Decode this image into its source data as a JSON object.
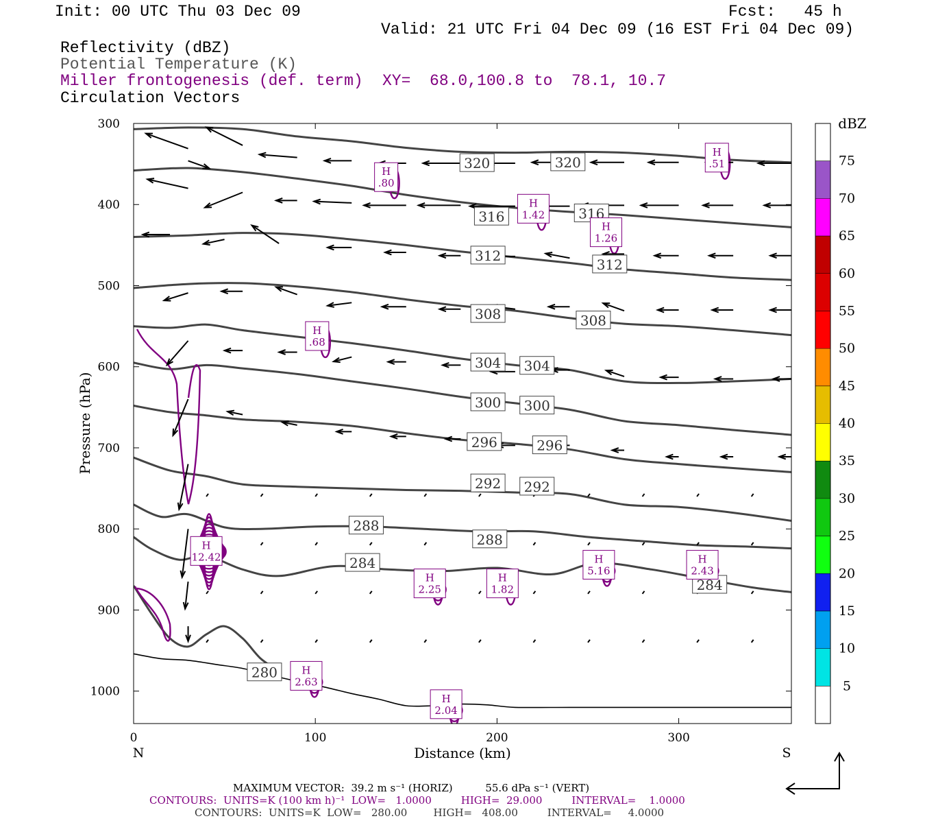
{
  "header": {
    "init": "Init: 00 UTC Thu 03 Dec 09",
    "fcst": "Fcst:   45 h",
    "valid": "Valid: 21 UTC Fri 04 Dec 09 (16 EST Fri 04 Dec 09)",
    "fields": [
      "Reflectivity (dBZ)",
      "Potential Temperature (K)",
      "Miller frontogenesis (def. term)",
      "Circulation Vectors"
    ],
    "xy": "XY=  68.0,100.8 to  78.1, 10.7"
  },
  "colors": {
    "theta": "#444444",
    "frontogenesis": "#800080",
    "terrain": "#000000",
    "vectors": "#000000"
  },
  "chart_data": {
    "type": "line",
    "xlabel": "Distance (km)",
    "ylabel": "Pressure (hPa)",
    "xlim": [
      0,
      362
    ],
    "ylim": [
      1040,
      300
    ],
    "xticks": [
      0,
      100,
      200,
      300
    ],
    "yticks": [
      300,
      400,
      500,
      600,
      700,
      800,
      900,
      1000
    ],
    "end_labels": {
      "left": "N",
      "right": "S"
    },
    "theta_contours": [
      {
        "value": "320",
        "x": [
          0,
          30,
          60,
          90,
          120,
          150,
          180,
          210,
          240,
          270,
          300,
          330,
          362
        ],
        "y": [
          307,
          305,
          307,
          316,
          322,
          330,
          335,
          336,
          335,
          336,
          340,
          345,
          348
        ]
      },
      {
        "value": "316",
        "x": [
          0,
          30,
          60,
          90,
          120,
          150,
          180,
          210,
          240,
          270,
          300,
          330,
          362
        ],
        "y": [
          358,
          355,
          360,
          368,
          377,
          388,
          397,
          404,
          409,
          413,
          418,
          423,
          428
        ]
      },
      {
        "value": "312",
        "x": [
          0,
          30,
          60,
          90,
          120,
          150,
          180,
          210,
          240,
          270,
          300,
          330,
          362
        ],
        "y": [
          440,
          438,
          435,
          437,
          443,
          450,
          458,
          465,
          472,
          480,
          485,
          490,
          493
        ]
      },
      {
        "value": "308",
        "x": [
          0,
          30,
          60,
          90,
          120,
          150,
          180,
          210,
          240,
          270,
          300,
          330,
          362
        ],
        "y": [
          503,
          498,
          497,
          501,
          508,
          517,
          525,
          531,
          540,
          547,
          550,
          555,
          561
        ]
      },
      {
        "value": "304",
        "x": [
          0,
          20,
          40,
          60,
          90,
          120,
          150,
          180,
          210,
          240,
          270,
          300,
          330,
          362
        ],
        "y": [
          550,
          552,
          548,
          555,
          563,
          571,
          580,
          590,
          598,
          604,
          618,
          620,
          618,
          615
        ]
      },
      {
        "value": "300",
        "x": [
          0,
          20,
          40,
          60,
          90,
          120,
          150,
          180,
          210,
          240,
          270,
          300,
          330,
          362
        ],
        "y": [
          595,
          603,
          598,
          602,
          609,
          618,
          627,
          637,
          645,
          653,
          667,
          672,
          678,
          684
        ]
      },
      {
        "value": "296",
        "x": [
          0,
          20,
          40,
          60,
          90,
          120,
          150,
          180,
          210,
          240,
          270,
          300,
          330,
          362
        ],
        "y": [
          648,
          656,
          660,
          665,
          668,
          673,
          682,
          690,
          695,
          702,
          714,
          720,
          725,
          730
        ]
      },
      {
        "value": "292",
        "x": [
          0,
          20,
          40,
          60,
          90,
          120,
          150,
          180,
          210,
          240,
          270,
          300,
          330,
          362
        ],
        "y": [
          712,
          728,
          735,
          745,
          748,
          750,
          752,
          753,
          755,
          757,
          770,
          773,
          780,
          790
        ]
      },
      {
        "value": "288",
        "x": [
          0,
          15,
          30,
          50,
          70,
          100,
          130,
          160,
          190,
          220,
          250,
          280,
          310,
          340,
          362
        ],
        "y": [
          770,
          785,
          782,
          798,
          800,
          797,
          797,
          800,
          803,
          803,
          810,
          815,
          820,
          822,
          824
        ]
      },
      {
        "value": "284",
        "x": [
          0,
          10,
          25,
          40,
          60,
          80,
          110,
          140,
          170,
          200,
          230,
          255,
          285,
          310,
          340,
          362
        ],
        "y": [
          810,
          825,
          838,
          833,
          850,
          858,
          846,
          850,
          852,
          848,
          856,
          842,
          850,
          860,
          872,
          878
        ]
      },
      {
        "value": "280",
        "x": [
          0,
          10,
          20,
          30,
          40,
          50,
          60,
          70,
          80
        ],
        "y": [
          870,
          905,
          935,
          945,
          930,
          920,
          935,
          960,
          975
        ]
      }
    ],
    "theta_labels": [
      {
        "text": "320",
        "x": 189,
        "y": 350
      },
      {
        "text": "320",
        "x": 239,
        "y": 349
      },
      {
        "text": "316",
        "x": 197,
        "y": 416
      },
      {
        "text": "316",
        "x": 252,
        "y": 412
      },
      {
        "text": "312",
        "x": 195,
        "y": 464
      },
      {
        "text": "312",
        "x": 262,
        "y": 475
      },
      {
        "text": "308",
        "x": 195,
        "y": 536
      },
      {
        "text": "308",
        "x": 253,
        "y": 544
      },
      {
        "text": "304",
        "x": 195,
        "y": 596
      },
      {
        "text": "304",
        "x": 222,
        "y": 600
      },
      {
        "text": "300",
        "x": 195,
        "y": 645
      },
      {
        "text": "300",
        "x": 222,
        "y": 649
      },
      {
        "text": "296",
        "x": 193,
        "y": 694
      },
      {
        "text": "296",
        "x": 229,
        "y": 698
      },
      {
        "text": "292",
        "x": 195,
        "y": 745
      },
      {
        "text": "292",
        "x": 222,
        "y": 749
      },
      {
        "text": "288",
        "x": 128,
        "y": 797
      },
      {
        "text": "288",
        "x": 196,
        "y": 814
      },
      {
        "text": "284",
        "x": 126,
        "y": 843
      },
      {
        "text": "284",
        "x": 317,
        "y": 870
      },
      {
        "text": "280",
        "x": 72,
        "y": 978
      }
    ],
    "terrain": {
      "x": [
        0,
        15,
        30,
        45,
        60,
        75,
        90,
        105,
        120,
        135,
        150,
        165,
        180,
        195,
        210,
        240,
        270,
        300,
        330,
        362
      ],
      "y": [
        954,
        960,
        962,
        967,
        972,
        980,
        988,
        995,
        1003,
        1010,
        1018,
        1018,
        1016,
        1017,
        1020,
        1020,
        1020,
        1020,
        1020,
        1020
      ]
    },
    "frontogenesis_maxima": [
      {
        "label": "H",
        "value": ".80",
        "x": 139,
        "y": 367
      },
      {
        "label": "H",
        "value": ".51",
        "x": 321,
        "y": 343
      },
      {
        "label": "H",
        "value": "1.42",
        "x": 220,
        "y": 406
      },
      {
        "label": "H",
        "value": "1.26",
        "x": 260,
        "y": 435
      },
      {
        "label": "H",
        "value": ".68",
        "x": 101,
        "y": 563
      },
      {
        "label": "H",
        "value": "12.42",
        "x": 40,
        "y": 828
      },
      {
        "label": "H",
        "value": "2.25",
        "x": 163,
        "y": 868
      },
      {
        "label": "H",
        "value": "1.82",
        "x": 203,
        "y": 868
      },
      {
        "label": "H",
        "value": "5.16",
        "x": 256,
        "y": 845
      },
      {
        "label": "H",
        "value": "2.43",
        "x": 313,
        "y": 845
      },
      {
        "label": "H",
        "value": "2.63",
        "x": 95,
        "y": 982
      },
      {
        "label": "H",
        "value": "2.04",
        "x": 172,
        "y": 1017
      }
    ],
    "vectors": [
      {
        "x": 30,
        "y": 331,
        "u": -28,
        "v": -10
      },
      {
        "x": 30,
        "y": 346,
        "u": 14,
        "v": 5
      },
      {
        "x": 60,
        "y": 327,
        "u": -24,
        "v": -12
      },
      {
        "x": 90,
        "y": 342,
        "u": -25,
        "v": -2
      },
      {
        "x": 120,
        "y": 346,
        "u": -18,
        "v": 0
      },
      {
        "x": 150,
        "y": 349,
        "u": -18,
        "v": 0
      },
      {
        "x": 180,
        "y": 349,
        "u": -25,
        "v": 0
      },
      {
        "x": 210,
        "y": 349,
        "u": -18,
        "v": 0
      },
      {
        "x": 240,
        "y": 348,
        "u": -25,
        "v": 0
      },
      {
        "x": 270,
        "y": 348,
        "u": -22,
        "v": 0
      },
      {
        "x": 300,
        "y": 348,
        "u": -20,
        "v": 0
      },
      {
        "x": 330,
        "y": 348,
        "u": -18,
        "v": 0
      },
      {
        "x": 362,
        "y": 349,
        "u": -22,
        "v": 0
      },
      {
        "x": 30,
        "y": 380,
        "u": -27,
        "v": -6
      },
      {
        "x": 60,
        "y": 385,
        "u": -25,
        "v": 10
      },
      {
        "x": 90,
        "y": 395,
        "u": -14,
        "v": 0
      },
      {
        "x": 120,
        "y": 398,
        "u": -25,
        "v": -1
      },
      {
        "x": 150,
        "y": 401,
        "u": -28,
        "v": 0
      },
      {
        "x": 180,
        "y": 401,
        "u": -28,
        "v": 0
      },
      {
        "x": 210,
        "y": 402,
        "u": -30,
        "v": 0
      },
      {
        "x": 240,
        "y": 402,
        "u": -32,
        "v": 0
      },
      {
        "x": 270,
        "y": 401,
        "u": -28,
        "v": 0
      },
      {
        "x": 300,
        "y": 401,
        "u": -25,
        "v": 0
      },
      {
        "x": 330,
        "y": 401,
        "u": -20,
        "v": 0
      },
      {
        "x": 362,
        "y": 401,
        "u": -18,
        "v": 0
      },
      {
        "x": 20,
        "y": 437,
        "u": -18,
        "v": 0
      },
      {
        "x": 50,
        "y": 443,
        "u": -14,
        "v": 3
      },
      {
        "x": 80,
        "y": 448,
        "u": -18,
        "v": -12
      },
      {
        "x": 120,
        "y": 453,
        "u": -16,
        "v": 0
      },
      {
        "x": 150,
        "y": 459,
        "u": -14,
        "v": 0
      },
      {
        "x": 180,
        "y": 463,
        "u": -14,
        "v": 0
      },
      {
        "x": 210,
        "y": 464,
        "u": -18,
        "v": 0
      },
      {
        "x": 240,
        "y": 466,
        "u": -16,
        "v": -3
      },
      {
        "x": 270,
        "y": 461,
        "u": -14,
        "v": 0
      },
      {
        "x": 300,
        "y": 463,
        "u": -16,
        "v": 0
      },
      {
        "x": 330,
        "y": 463,
        "u": -16,
        "v": 0
      },
      {
        "x": 362,
        "y": 463,
        "u": -14,
        "v": 0
      },
      {
        "x": 30,
        "y": 509,
        "u": -16,
        "v": 5
      },
      {
        "x": 60,
        "y": 507,
        "u": -14,
        "v": 0
      },
      {
        "x": 90,
        "y": 511,
        "u": -14,
        "v": -5
      },
      {
        "x": 120,
        "y": 521,
        "u": -16,
        "v": 2
      },
      {
        "x": 150,
        "y": 526,
        "u": -16,
        "v": 0
      },
      {
        "x": 180,
        "y": 529,
        "u": -14,
        "v": 0
      },
      {
        "x": 210,
        "y": 529,
        "u": -16,
        "v": -2
      },
      {
        "x": 240,
        "y": 526,
        "u": -14,
        "v": 0
      },
      {
        "x": 270,
        "y": 531,
        "u": -14,
        "v": -5
      },
      {
        "x": 300,
        "y": 530,
        "u": -14,
        "v": 0
      },
      {
        "x": 330,
        "y": 530,
        "u": -14,
        "v": 0
      },
      {
        "x": 362,
        "y": 530,
        "u": -14,
        "v": 0
      },
      {
        "x": 30,
        "y": 568,
        "u": -14,
        "v": 16
      },
      {
        "x": 60,
        "y": 580,
        "u": -12,
        "v": 0
      },
      {
        "x": 90,
        "y": 582,
        "u": -12,
        "v": 0
      },
      {
        "x": 120,
        "y": 588,
        "u": -12,
        "v": 3
      },
      {
        "x": 150,
        "y": 594,
        "u": -12,
        "v": 0
      },
      {
        "x": 180,
        "y": 598,
        "u": -12,
        "v": 0
      },
      {
        "x": 210,
        "y": 606,
        "u": -16,
        "v": 0
      },
      {
        "x": 240,
        "y": 604,
        "u": -12,
        "v": 0
      },
      {
        "x": 270,
        "y": 612,
        "u": -12,
        "v": -4
      },
      {
        "x": 300,
        "y": 613,
        "u": -12,
        "v": 0
      },
      {
        "x": 330,
        "y": 615,
        "u": -12,
        "v": 0
      },
      {
        "x": 362,
        "y": 615,
        "u": -12,
        "v": 0
      },
      {
        "x": 30,
        "y": 640,
        "u": -10,
        "v": 24
      },
      {
        "x": 60,
        "y": 659,
        "u": -10,
        "v": -2
      },
      {
        "x": 90,
        "y": 672,
        "u": -10,
        "v": -2
      },
      {
        "x": 120,
        "y": 680,
        "u": -10,
        "v": 0
      },
      {
        "x": 150,
        "y": 686,
        "u": -10,
        "v": 0
      },
      {
        "x": 180,
        "y": 689,
        "u": -10,
        "v": 0
      },
      {
        "x": 210,
        "y": 697,
        "u": -12,
        "v": 0
      },
      {
        "x": 240,
        "y": 697,
        "u": -12,
        "v": 0
      },
      {
        "x": 270,
        "y": 703,
        "u": -8,
        "v": 0
      },
      {
        "x": 300,
        "y": 711,
        "u": -8,
        "v": 0
      },
      {
        "x": 330,
        "y": 711,
        "u": -8,
        "v": 0
      },
      {
        "x": 362,
        "y": 711,
        "u": -8,
        "v": 0
      },
      {
        "x": 30,
        "y": 720,
        "u": -6,
        "v": 30
      },
      {
        "x": 30,
        "y": 800,
        "u": -4,
        "v": 32
      },
      {
        "x": 30,
        "y": 865,
        "u": -2,
        "v": 18
      },
      {
        "x": 30,
        "y": 920,
        "u": 0,
        "v": 10
      }
    ]
  },
  "colorbar": {
    "title": "dBZ",
    "labels": [
      "5",
      "10",
      "15",
      "20",
      "25",
      "30",
      "35",
      "40",
      "45",
      "50",
      "55",
      "60",
      "65",
      "70",
      "75"
    ],
    "colors": [
      "#ffffff",
      "#00e4e4",
      "#00a0f0",
      "#1020f0",
      "#10ff10",
      "#10c810",
      "#108a10",
      "#ffff00",
      "#e6bd00",
      "#ff8c00",
      "#ff0000",
      "#dc0000",
      "#c00000",
      "#ff00ff",
      "#9a55c8",
      "#ffffff"
    ]
  },
  "footer": {
    "max_vector": "MAXIMUM VECTOR:  39.2 m s⁻¹ (HORIZ)          55.6 dPa s⁻¹ (VERT)",
    "contours_purple": "CONTOURS:  UNITS=K (100 km h)⁻¹  LOW=   1.0000         HIGH=  29.000         INTERVAL=    1.0000",
    "contours_gray": "CONTOURS:  UNITS=K  LOW=   280.00        HIGH=   408.00         INTERVAL=     4.0000"
  }
}
